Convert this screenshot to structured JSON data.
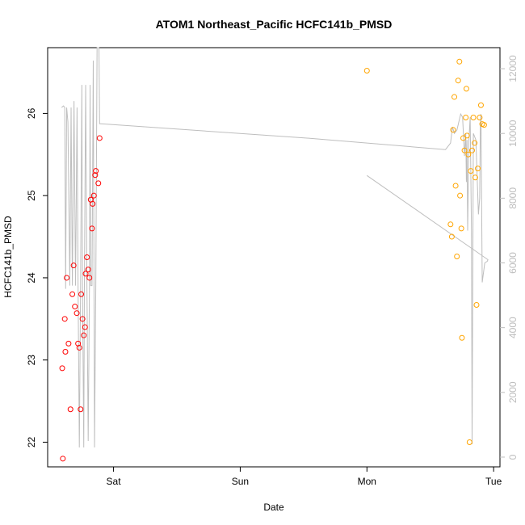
{
  "chart_data": {
    "type": "scatter",
    "title": "ATOM1 Northeast_Pacific HCFC141b_PMSD",
    "xlabel": "Date",
    "ylabel": "HCFC141b_PMSD",
    "x_ticks": [
      {
        "label": "Sat",
        "x": 1.0
      },
      {
        "label": "Sun",
        "x": 2.0
      },
      {
        "label": "Mon",
        "x": 3.0
      },
      {
        "label": "Tue",
        "x": 4.0
      }
    ],
    "xlim": [
      0.48,
      4.05
    ],
    "ylim": [
      21.7,
      26.8
    ],
    "y_ticks": [
      22,
      23,
      24,
      25,
      26
    ],
    "y2lim": [
      -300,
      12650
    ],
    "y2_ticks": [
      0,
      2000,
      4000,
      6000,
      8000,
      10000,
      12000
    ],
    "colors": {
      "red": "#ff0000",
      "orange": "#ffa500",
      "line": "#bebebe"
    },
    "series": [
      {
        "color": "red",
        "points": [
          [
            0.6,
            21.8
          ],
          [
            0.595,
            22.9
          ],
          [
            0.615,
            23.5
          ],
          [
            0.62,
            23.1
          ],
          [
            0.63,
            24.0
          ],
          [
            0.645,
            23.2
          ],
          [
            0.66,
            22.4
          ],
          [
            0.675,
            23.8
          ],
          [
            0.685,
            24.15
          ],
          [
            0.695,
            23.65
          ],
          [
            0.71,
            23.57
          ],
          [
            0.72,
            23.2
          ],
          [
            0.73,
            23.15
          ],
          [
            0.74,
            22.4
          ],
          [
            0.745,
            23.8
          ],
          [
            0.755,
            23.5
          ],
          [
            0.765,
            23.3
          ],
          [
            0.775,
            23.4
          ],
          [
            0.78,
            24.05
          ],
          [
            0.79,
            24.25
          ],
          [
            0.8,
            24.1
          ],
          [
            0.81,
            24.0
          ],
          [
            0.82,
            24.95
          ],
          [
            0.83,
            24.6
          ],
          [
            0.835,
            24.9
          ],
          [
            0.845,
            25.0
          ],
          [
            0.855,
            25.25
          ],
          [
            0.86,
            25.3
          ],
          [
            0.88,
            25.15
          ],
          [
            0.89,
            25.7
          ]
        ]
      },
      {
        "color": "orange",
        "points": [
          [
            3.0,
            26.52
          ],
          [
            3.66,
            24.65
          ],
          [
            3.67,
            24.5
          ],
          [
            3.68,
            25.8
          ],
          [
            3.69,
            26.2
          ],
          [
            3.7,
            25.12
          ],
          [
            3.71,
            24.26
          ],
          [
            3.72,
            26.4
          ],
          [
            3.73,
            26.63
          ],
          [
            3.735,
            25.0
          ],
          [
            3.745,
            24.6
          ],
          [
            3.75,
            23.27
          ],
          [
            3.76,
            25.7
          ],
          [
            3.77,
            25.55
          ],
          [
            3.78,
            25.95
          ],
          [
            3.785,
            26.3
          ],
          [
            3.79,
            25.73
          ],
          [
            3.8,
            25.5
          ],
          [
            3.81,
            22.0
          ],
          [
            3.82,
            25.3
          ],
          [
            3.83,
            25.55
          ],
          [
            3.84,
            25.95
          ],
          [
            3.85,
            25.64
          ],
          [
            3.855,
            25.22
          ],
          [
            3.865,
            23.67
          ],
          [
            3.875,
            25.33
          ],
          [
            3.89,
            25.95
          ],
          [
            3.9,
            26.1
          ],
          [
            3.91,
            25.87
          ],
          [
            3.925,
            25.86
          ]
        ]
      }
    ],
    "line_series": {
      "color": "line",
      "axis": "right",
      "points": [
        [
          0.59,
          10800
        ],
        [
          0.605,
          10850
        ],
        [
          0.615,
          10800
        ],
        [
          0.622,
          5200
        ],
        [
          0.63,
          10800
        ],
        [
          0.64,
          10350
        ],
        [
          0.655,
          5300
        ],
        [
          0.665,
          10800
        ],
        [
          0.675,
          5300
        ],
        [
          0.688,
          11000
        ],
        [
          0.7,
          5300
        ],
        [
          0.712,
          10800
        ],
        [
          0.72,
          5300
        ],
        [
          0.73,
          300
        ],
        [
          0.74,
          5300
        ],
        [
          0.75,
          11500
        ],
        [
          0.755,
          5300
        ],
        [
          0.765,
          300
        ],
        [
          0.77,
          5300
        ],
        [
          0.78,
          11500
        ],
        [
          0.79,
          5300
        ],
        [
          0.8,
          500
        ],
        [
          0.81,
          5300
        ],
        [
          0.815,
          11500
        ],
        [
          0.82,
          5300
        ],
        [
          0.83,
          5300
        ],
        [
          0.84,
          12250
        ],
        [
          0.85,
          300
        ],
        [
          0.86,
          5300
        ],
        [
          0.87,
          12650
        ],
        [
          0.885,
          12650
        ],
        [
          0.89,
          10300
        ],
        [
          2.55,
          9850
        ],
        [
          3.62,
          9500
        ],
        [
          3.66,
          9700
        ],
        [
          3.675,
          10200
        ],
        [
          3.69,
          10000
        ],
        [
          3.71,
          10100
        ],
        [
          3.74,
          10600
        ],
        [
          3.755,
          10500
        ],
        [
          3.77,
          9300
        ],
        [
          3.78,
          10000
        ],
        [
          3.785,
          8500
        ],
        [
          3.79,
          9800
        ],
        [
          3.795,
          7000
        ],
        [
          3.805,
          9800
        ],
        [
          3.815,
          10500
        ],
        [
          3.825,
          7000
        ],
        [
          3.83,
          400
        ],
        [
          3.84,
          10000
        ],
        [
          3.86,
          9800
        ],
        [
          3.88,
          7500
        ],
        [
          3.89,
          8000
        ],
        [
          3.895,
          10200
        ],
        [
          3.9,
          10600
        ],
        [
          3.91,
          5400
        ],
        [
          3.93,
          6000
        ],
        [
          3.95,
          6050
        ],
        [
          3.955,
          6100
        ],
        [
          3.0,
          8700
        ]
      ]
    }
  }
}
